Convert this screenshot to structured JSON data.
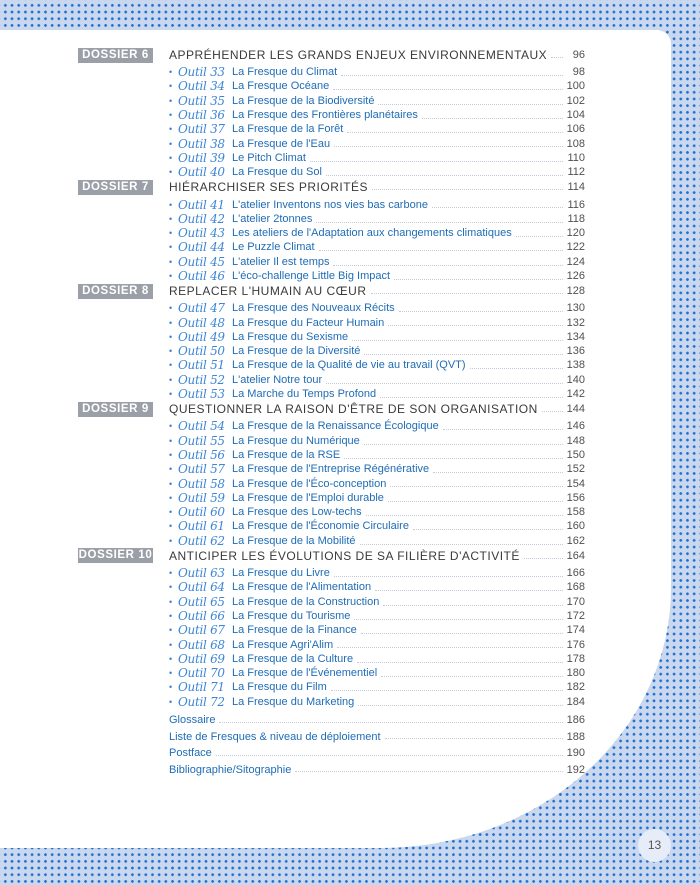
{
  "dossiers": [
    {
      "label": "DOSSIER 6",
      "title": "APPRÉHENDER LES GRANDS ENJEUX ENVIRONNEMENTAUX",
      "page": "96",
      "items": [
        {
          "outil": "Outil 33",
          "title": "La Fresque du Climat",
          "page": "98"
        },
        {
          "outil": "Outil 34",
          "title": "La Fresque Océane",
          "page": "100"
        },
        {
          "outil": "Outil 35",
          "title": "La Fresque de la Biodiversité",
          "page": "102"
        },
        {
          "outil": "Outil 36",
          "title": "La Fresque des Frontières planétaires",
          "page": "104"
        },
        {
          "outil": "Outil 37",
          "title": "La Fresque de la Forêt",
          "page": "106"
        },
        {
          "outil": "Outil 38",
          "title": "La Fresque de l'Eau",
          "page": "108"
        },
        {
          "outil": "Outil 39",
          "title": "Le Pitch Climat",
          "page": "110"
        },
        {
          "outil": "Outil 40",
          "title": "La Fresque du Sol",
          "page": "112"
        }
      ]
    },
    {
      "label": "DOSSIER 7",
      "title": "HIÉRARCHISER SES PRIORITÉS",
      "page": "114",
      "items": [
        {
          "outil": "Outil 41",
          "title": "L'atelier Inventons nos vies bas carbone",
          "page": "116"
        },
        {
          "outil": "Outil 42",
          "title": "L'atelier 2tonnes",
          "page": "118"
        },
        {
          "outil": "Outil 43",
          "title": "Les ateliers de l'Adaptation aux changements climatiques",
          "page": "120"
        },
        {
          "outil": "Outil 44",
          "title": "Le Puzzle Climat",
          "page": "122"
        },
        {
          "outil": "Outil 45",
          "title": "L'atelier Il est temps",
          "page": "124"
        },
        {
          "outil": "Outil 46",
          "title": "L'éco-challenge Little Big Impact",
          "page": "126"
        }
      ]
    },
    {
      "label": "DOSSIER 8",
      "title": "REPLACER L'HUMAIN AU CŒUR",
      "page": "128",
      "items": [
        {
          "outil": "Outil 47",
          "title": "La Fresque des Nouveaux Récits",
          "page": "130"
        },
        {
          "outil": "Outil 48",
          "title": "La Fresque du Facteur Humain",
          "page": "132"
        },
        {
          "outil": "Outil 49",
          "title": "La Fresque du Sexisme",
          "page": "134"
        },
        {
          "outil": "Outil 50",
          "title": "La Fresque de la Diversité",
          "page": "136"
        },
        {
          "outil": "Outil 51",
          "title": "La Fresque de la Qualité de vie au travail (QVT)",
          "page": "138"
        },
        {
          "outil": "Outil 52",
          "title": "L'atelier Notre tour",
          "page": "140"
        },
        {
          "outil": "Outil 53",
          "title": "La Marche du Temps Profond",
          "page": "142"
        }
      ]
    },
    {
      "label": "DOSSIER 9",
      "title": "QUESTIONNER LA RAISON D'ÊTRE DE SON ORGANISATION",
      "page": "144",
      "items": [
        {
          "outil": "Outil 54",
          "title": "La Fresque de la Renaissance Écologique",
          "page": "146"
        },
        {
          "outil": "Outil 55",
          "title": "La Fresque du Numérique",
          "page": "148"
        },
        {
          "outil": "Outil 56",
          "title": "La Fresque de la RSE",
          "page": "150"
        },
        {
          "outil": "Outil 57",
          "title": "La Fresque de l'Entreprise Régénérative",
          "page": "152"
        },
        {
          "outil": "Outil 58",
          "title": "La Fresque de l'Éco-conception",
          "page": "154"
        },
        {
          "outil": "Outil 59",
          "title": "La Fresque de l'Emploi durable",
          "page": "156"
        },
        {
          "outil": "Outil 60",
          "title": "La Fresque des Low-techs",
          "page": "158"
        },
        {
          "outil": "Outil 61",
          "title": "La Fresque de l'Économie Circulaire",
          "page": "160"
        },
        {
          "outil": "Outil 62",
          "title": "La Fresque de la Mobilité",
          "page": "162"
        }
      ]
    },
    {
      "label": "DOSSIER 10",
      "title": "ANTICIPER LES ÉVOLUTIONS DE SA FILIÈRE D'ACTIVITÉ",
      "page": "164",
      "items": [
        {
          "outil": "Outil 63",
          "title": "La Fresque du Livre",
          "page": "166"
        },
        {
          "outil": "Outil 64",
          "title": "La Fresque de l'Alimentation",
          "page": "168"
        },
        {
          "outil": "Outil 65",
          "title": "La Fresque de la Construction",
          "page": "170"
        },
        {
          "outil": "Outil 66",
          "title": "La Fresque du Tourisme",
          "page": "172"
        },
        {
          "outil": "Outil 67",
          "title": "La Fresque de la Finance",
          "page": "174"
        },
        {
          "outil": "Outil 68",
          "title": "La Fresque Agri'Alim",
          "page": "176"
        },
        {
          "outil": "Outil 69",
          "title": "La Fresque de la Culture",
          "page": "178"
        },
        {
          "outil": "Outil 70",
          "title": "La Fresque de l'Événementiel",
          "page": "180"
        },
        {
          "outil": "Outil 71",
          "title": "La Fresque du Film",
          "page": "182"
        },
        {
          "outil": "Outil 72",
          "title": "La Fresque du Marketing",
          "page": "184"
        }
      ]
    }
  ],
  "extras": [
    {
      "title": "Glossaire",
      "page": "186"
    },
    {
      "title": "Liste de Fresques & niveau de déploiement",
      "page": "188"
    },
    {
      "title": "Postface",
      "page": "190"
    },
    {
      "title": "Bibliographie/Sitographie",
      "page": "192"
    }
  ],
  "bullet": "•",
  "page_number": "13",
  "colors": {
    "badge": "#9b9fa7",
    "item": "#1f6cb5",
    "outil": "#3d86d6",
    "background": "#c9d7ef",
    "dots": "#1f6fd0"
  }
}
